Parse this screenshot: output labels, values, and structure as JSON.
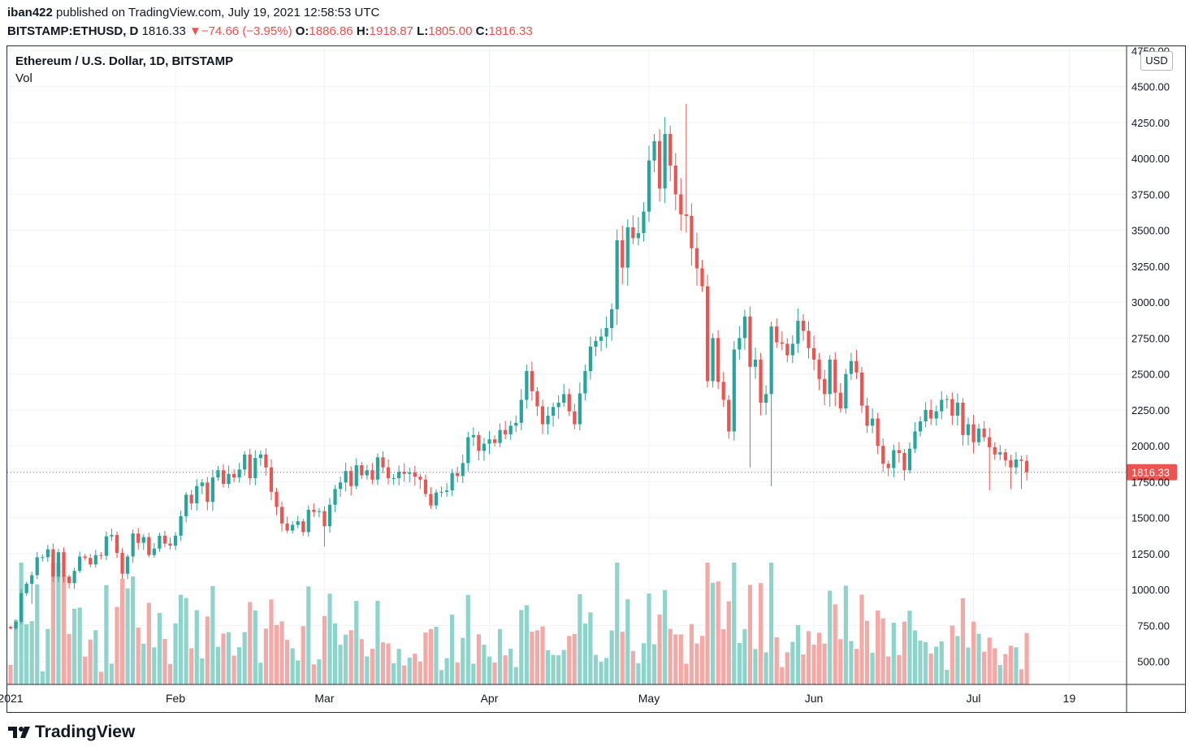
{
  "header": {
    "author": "iban422",
    "published_text": "published on TradingView.com, July 19, 2021 12:58:53 UTC"
  },
  "ohlc": {
    "symbol": "BITSTAMP:ETHUSD, D",
    "last": "1816.33",
    "arrow": "▼",
    "change": "−74.66 (−3.95%)",
    "o_label": "O:",
    "o": "1886.86",
    "h_label": "H:",
    "h": "1918.87",
    "l_label": "L:",
    "l": "1805.00",
    "c_label": "C:",
    "c": "1816.33"
  },
  "legend": {
    "title": "Ethereum / U.S. Dollar, 1D, BITSTAMP",
    "vol": "Vol"
  },
  "currency": "USD",
  "brand": "TradingView",
  "colors": {
    "up": "#26a69a",
    "down": "#ef5350",
    "vol_up": "#8fd4cb",
    "vol_down": "#f5a9a7",
    "grid": "#f0f3fa"
  },
  "chart_data": {
    "type": "candlestick",
    "title": "Ethereum / U.S. Dollar, 1D, BITSTAMP",
    "y_ticks": [
      500,
      750,
      1000,
      1250,
      1500,
      1750,
      2000,
      2250,
      2500,
      2750,
      3000,
      3250,
      3500,
      3750,
      4000,
      4250,
      4500,
      4750
    ],
    "y_tick_labels": [
      "500.00",
      "750.00",
      "1000.00",
      "1250.00",
      "1500.00",
      "1750.00",
      "2000.00",
      "2250.00",
      "2500.00",
      "2750.00",
      "3000.00",
      "3250.00",
      "3500.00",
      "3750.00",
      "4000.00",
      "4250.00",
      "4500.00",
      "4750.00"
    ],
    "ylim": [
      340,
      4780
    ],
    "x_ticks": [
      {
        "day": 0,
        "label": "2021"
      },
      {
        "day": 31,
        "label": "Feb"
      },
      {
        "day": 59,
        "label": "Mar"
      },
      {
        "day": 90,
        "label": "Apr"
      },
      {
        "day": 120,
        "label": "May"
      },
      {
        "day": 151,
        "label": "Jun"
      },
      {
        "day": 181,
        "label": "Jul"
      },
      {
        "day": 199,
        "label": "19"
      }
    ],
    "last_price_label": "1816.33",
    "last_price": 1816.33,
    "start_date": "2021-01-01",
    "closes": [
      730,
      775,
      975,
      1040,
      1100,
      1225,
      1225,
      1280,
      1090,
      1260,
      1090,
      1045,
      1130,
      1230,
      1220,
      1175,
      1240,
      1235,
      1370,
      1380,
      1255,
      1110,
      1230,
      1390,
      1325,
      1365,
      1240,
      1285,
      1375,
      1320,
      1305,
      1375,
      1510,
      1660,
      1600,
      1720,
      1745,
      1610,
      1780,
      1830,
      1735,
      1805,
      1780,
      1835,
      1940,
      1775,
      1915,
      1940,
      1850,
      1680,
      1575,
      1460,
      1410,
      1450,
      1475,
      1400,
      1555,
      1540,
      1545,
      1440,
      1590,
      1700,
      1745,
      1825,
      1720,
      1865,
      1795,
      1830,
      1765,
      1920,
      1850,
      1775,
      1775,
      1820,
      1805,
      1815,
      1785,
      1765,
      1665,
      1585,
      1675,
      1680,
      1690,
      1810,
      1790,
      1880,
      2060,
      2075,
      1965,
      2015,
      2045,
      2020,
      2110,
      2080,
      2140,
      2160,
      2320,
      2520,
      2380,
      2275,
      2150,
      2210,
      2270,
      2300,
      2360,
      2240,
      2150,
      2365,
      2520,
      2690,
      2730,
      2760,
      2820,
      2950,
      3430,
      3240,
      3520,
      3445,
      3480,
      3630,
      3985,
      4120,
      3790,
      4170,
      3950,
      3750,
      3610,
      3600,
      3375,
      3235,
      3110,
      2450,
      2750,
      2445,
      2320,
      2100,
      2670,
      2750,
      2900,
      2550,
      2600,
      2300,
      2360,
      2830,
      2720,
      2710,
      2630,
      2710,
      2870,
      2800,
      2680,
      2600,
      2465,
      2360,
      2600,
      2370,
      2260,
      2500,
      2590,
      2510,
      2280,
      2140,
      2190,
      2000,
      1875,
      1845,
      1970,
      1950,
      1830,
      1980,
      2100,
      2170,
      2250,
      2190,
      2240,
      2320,
      2325,
      2210,
      2300,
      2075,
      2150,
      2025,
      2120,
      2060,
      1990,
      1940,
      1955,
      1900,
      1850,
      1905,
      1895,
      1816.33
    ]
  }
}
